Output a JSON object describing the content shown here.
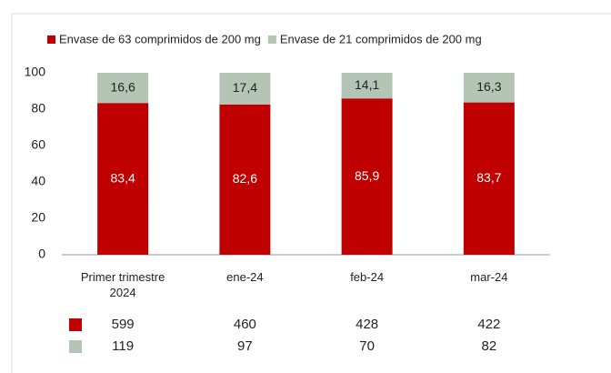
{
  "chart_data": {
    "type": "stacked_bar",
    "categories": [
      "Primer trimestre 2024",
      "ene-24",
      "feb-24",
      "mar-24"
    ],
    "series": [
      {
        "name": "Envase de 63 comprimidos de 200 mg",
        "color": "#c00000",
        "label_color": "#ffffff",
        "values": [
          83.4,
          82.6,
          85.9,
          83.7
        ],
        "value_labels": [
          "83,4",
          "82,6",
          "85,9",
          "83,7"
        ]
      },
      {
        "name": "Envase de 21 comprimidos de 200 mg",
        "color": "#b4c5b6",
        "label_color": "#222222",
        "values": [
          16.6,
          17.4,
          14.1,
          16.3
        ],
        "value_labels": [
          "16,6",
          "17,4",
          "14,1",
          "16,3"
        ]
      }
    ],
    "ylim": [
      0,
      100
    ],
    "yticks": [
      0,
      20,
      40,
      60,
      80,
      100
    ],
    "grid": false,
    "legend": "top",
    "table_rows": [
      [
        599,
        460,
        428,
        422
      ],
      [
        119,
        97,
        70,
        82
      ]
    ]
  }
}
